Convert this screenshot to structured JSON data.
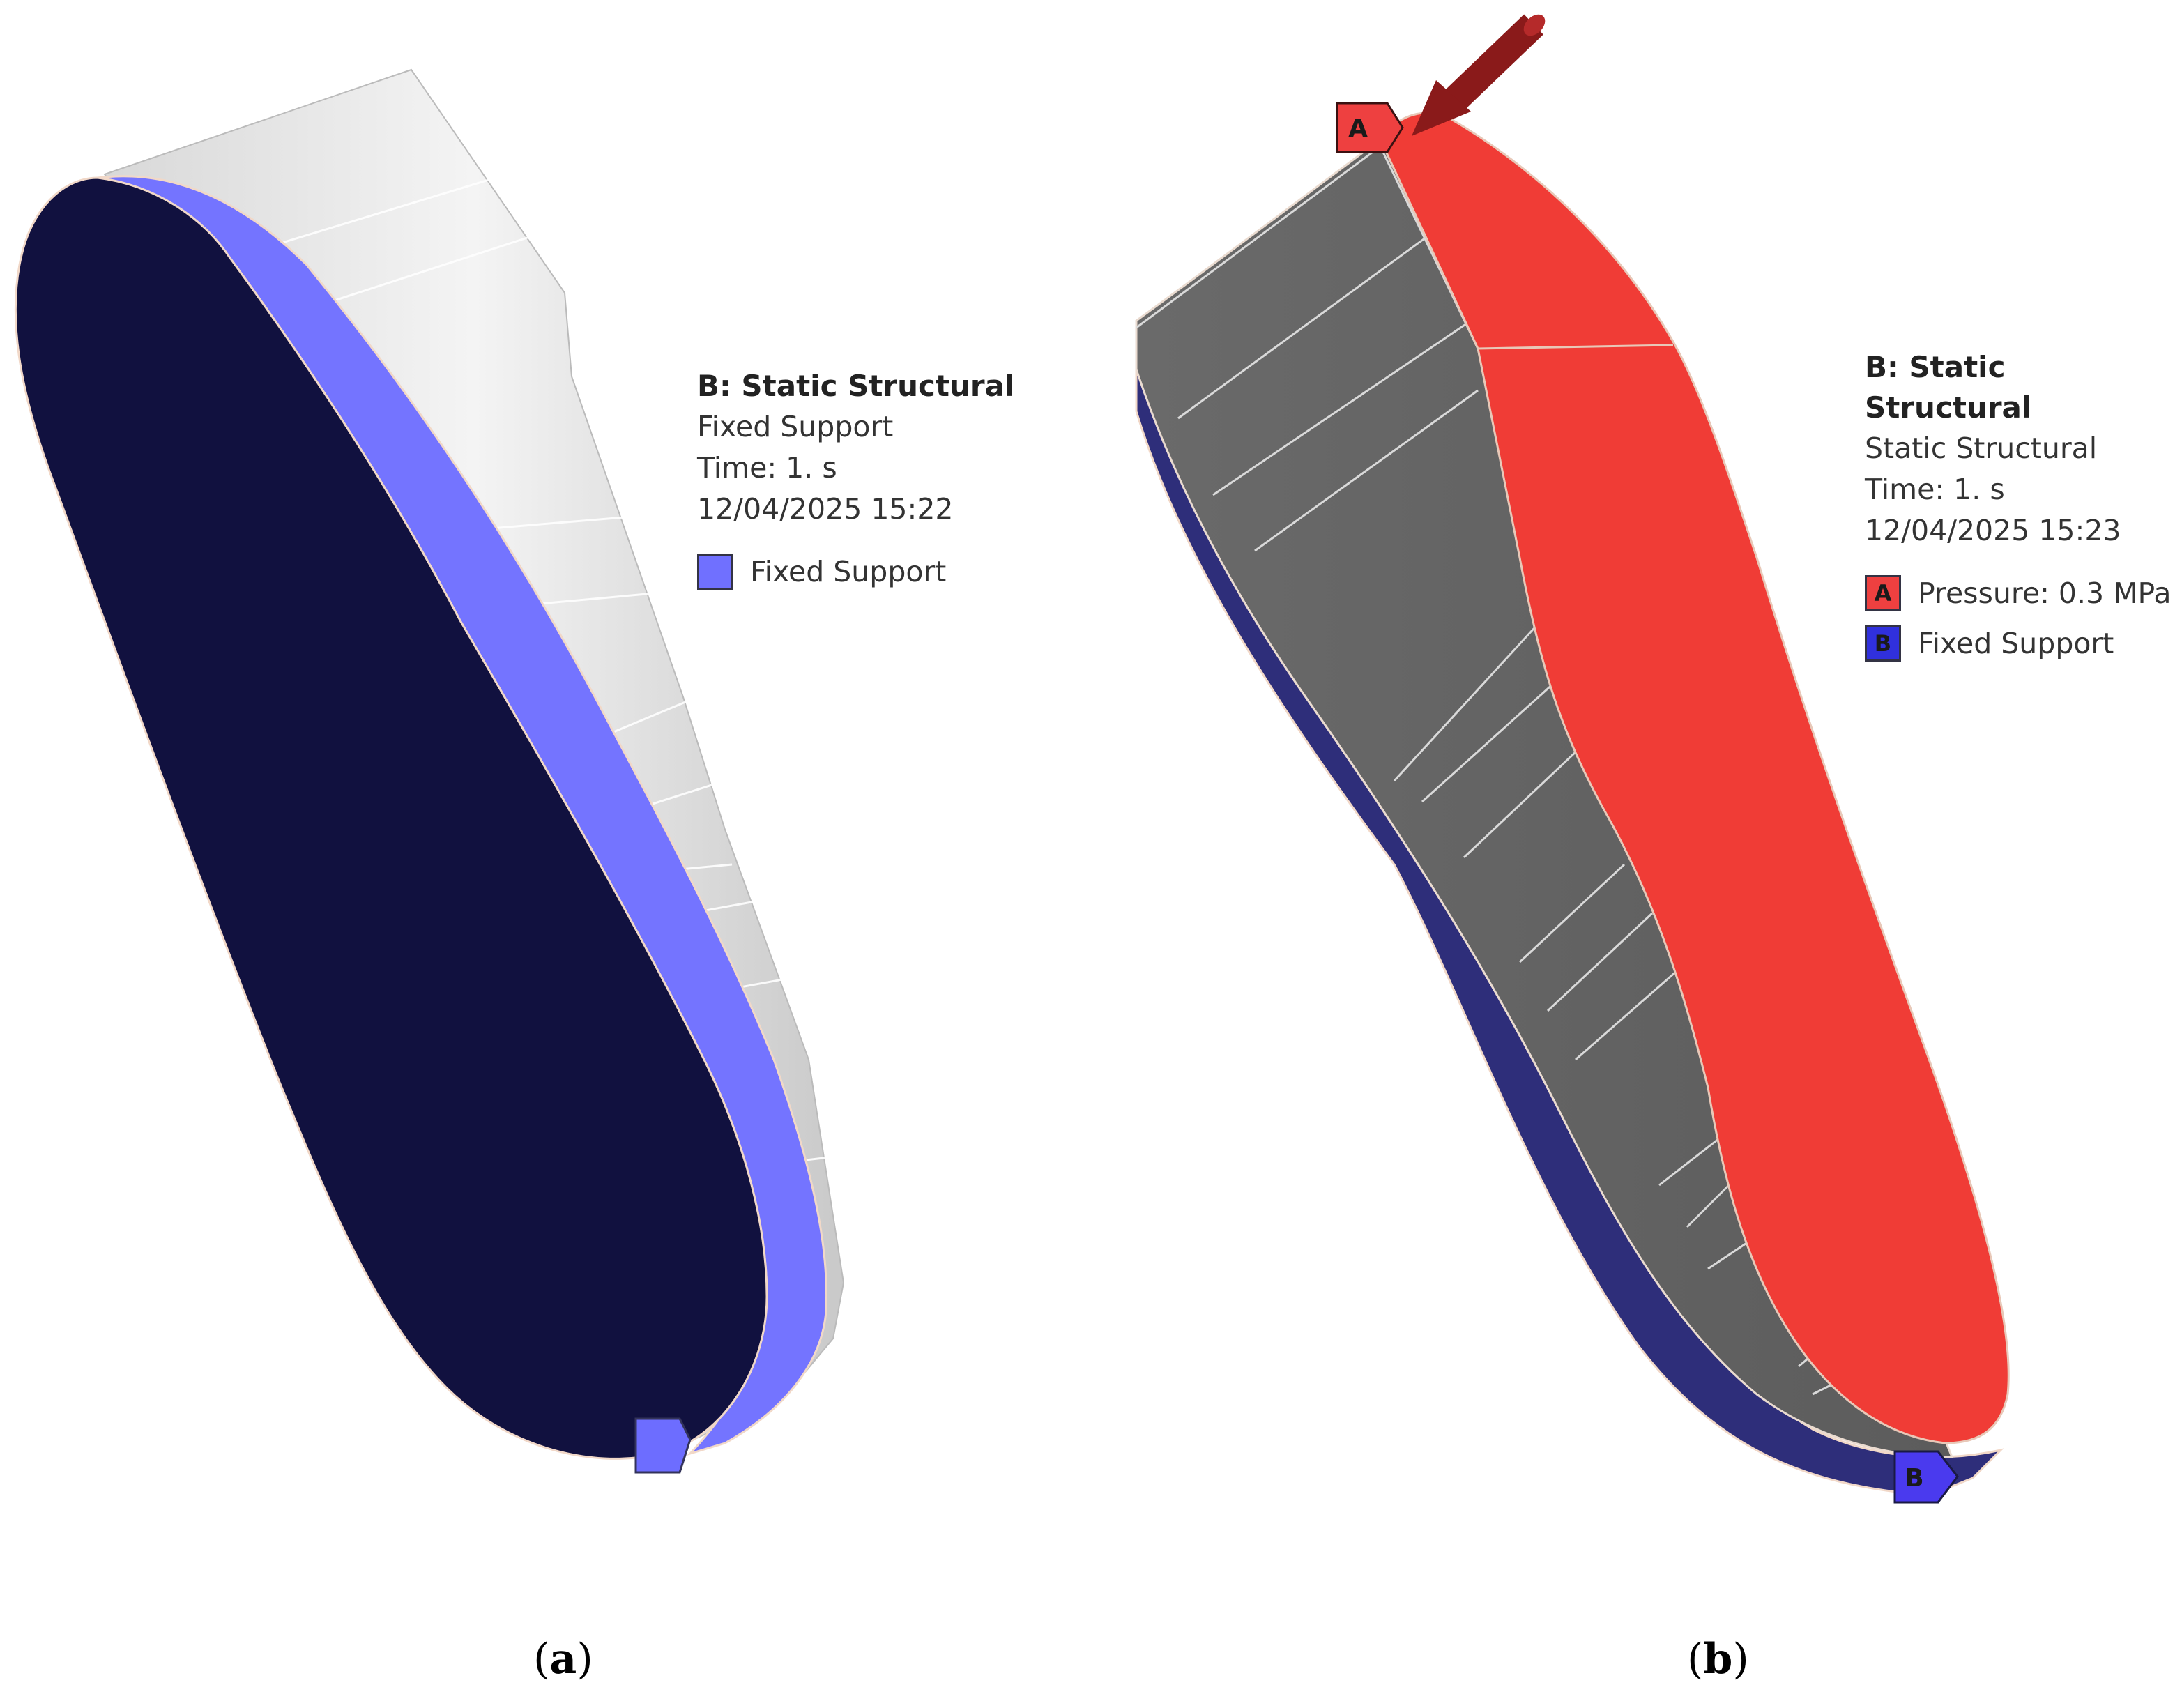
{
  "panel_a": {
    "legend": {
      "title": "B: Static Structural",
      "subtitle": "Fixed Support",
      "time": "Time: 1. s",
      "timestamp": "12/04/2025 15:22",
      "items": [
        {
          "label": "Fixed Support",
          "color": "#7070ff",
          "letter": ""
        }
      ]
    },
    "caption_letter": "a"
  },
  "panel_b": {
    "legend": {
      "title": "B: Static Structural",
      "subtitle": "Static Structural",
      "time": "Time: 1. s",
      "timestamp": "12/04/2025 15:23",
      "items": [
        {
          "label": "Pressure: 0.3 MPa",
          "color": "#ee4040",
          "letter": "A"
        },
        {
          "label": "Fixed Support",
          "color": "#3030dd",
          "letter": "B"
        }
      ]
    },
    "markers": {
      "pressure": "A",
      "support": "B"
    },
    "caption_letter": "b"
  },
  "colors": {
    "insole_bottom": "#11113f",
    "support_blue": "#7070ff",
    "pressure_red": "#f0403a",
    "mesh_gray": "#666666",
    "side_wall": "#e6e6e6",
    "arrow": "#8a1a1a"
  }
}
